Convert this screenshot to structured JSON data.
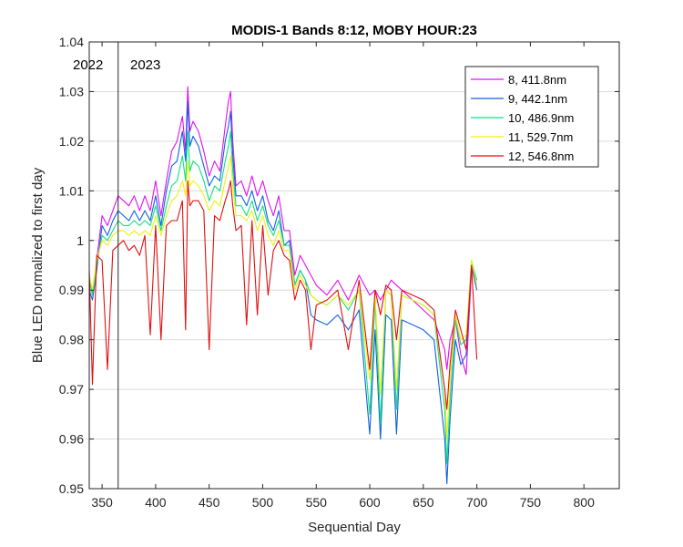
{
  "chart_data": {
    "type": "line",
    "title": "MODIS-1 Bands 8:12, MOBY HOUR:23",
    "xlabel": "Sequential Day",
    "ylabel": "Blue LED normalized to first day",
    "xlim": [
      338,
      833
    ],
    "ylim": [
      0.95,
      1.04
    ],
    "xticks": [
      350,
      400,
      450,
      500,
      550,
      600,
      650,
      700,
      750,
      800
    ],
    "yticks": [
      0.95,
      0.96,
      0.97,
      0.98,
      0.99,
      1,
      1.01,
      1.02,
      1.03,
      1.04
    ],
    "ytick_labels": [
      "0.95",
      "0.96",
      "0.97",
      "0.98",
      "0.99",
      "1",
      "1.01",
      "1.02",
      "1.03",
      "1.04"
    ],
    "grid": "horizontal",
    "legend_position": "top-right",
    "annotations": [
      {
        "type": "vline",
        "x": 365
      },
      {
        "text": "2022",
        "x": 349,
        "y": 1.0355
      },
      {
        "text": "2023",
        "x": 382,
        "y": 1.0355
      }
    ],
    "series": [
      {
        "name": "8, 411.8nm",
        "color": "#e010f0",
        "x": [
          338,
          341,
          345,
          350,
          355,
          360,
          365,
          370,
          375,
          380,
          385,
          390,
          395,
          400,
          405,
          410,
          415,
          420,
          425,
          428,
          430,
          432,
          435,
          440,
          445,
          450,
          455,
          460,
          465,
          468,
          470,
          472,
          475,
          480,
          485,
          490,
          495,
          500,
          505,
          510,
          515,
          520,
          525,
          530,
          535,
          540,
          545,
          550,
          560,
          570,
          580,
          590,
          600,
          605,
          610,
          615,
          620,
          625,
          630,
          640,
          650,
          660,
          670,
          672,
          675,
          680,
          685,
          690,
          695,
          700
        ],
        "y": [
          0.993,
          0.989,
          0.996,
          1.005,
          1.003,
          1.006,
          1.009,
          1.008,
          1.007,
          1.009,
          1.006,
          1.009,
          1.006,
          1.012,
          1.005,
          1.012,
          1.018,
          1.02,
          1.025,
          1.018,
          1.031,
          1.022,
          1.024,
          1.022,
          1.018,
          1.013,
          1.016,
          1.014,
          1.023,
          1.028,
          1.03,
          1.02,
          1.011,
          1.012,
          1.009,
          1.013,
          1.009,
          1.012,
          1.008,
          1.005,
          1.009,
          1.002,
          1.002,
          0.993,
          0.997,
          0.995,
          0.993,
          0.991,
          0.989,
          0.992,
          0.988,
          0.993,
          0.989,
          0.99,
          0.988,
          0.99,
          0.992,
          0.991,
          0.99,
          0.988,
          0.986,
          0.984,
          0.978,
          0.974,
          0.98,
          0.984,
          0.977,
          0.973,
          0.994,
          0.992
        ]
      },
      {
        "name": "9, 442.1nm",
        "color": "#1060e0",
        "x": [
          338,
          341,
          345,
          350,
          355,
          360,
          365,
          370,
          375,
          380,
          385,
          390,
          395,
          400,
          405,
          410,
          415,
          420,
          425,
          428,
          430,
          432,
          435,
          440,
          445,
          450,
          455,
          460,
          465,
          468,
          470,
          472,
          475,
          480,
          485,
          490,
          495,
          500,
          505,
          510,
          515,
          520,
          525,
          530,
          535,
          540,
          545,
          550,
          560,
          570,
          580,
          590,
          600,
          605,
          610,
          615,
          620,
          625,
          630,
          640,
          650,
          660,
          670,
          672,
          675,
          680,
          685,
          690,
          695,
          700
        ],
        "y": [
          0.99,
          0.988,
          0.994,
          1.003,
          1.001,
          1.004,
          1.006,
          1.005,
          1.004,
          1.006,
          1.004,
          1.006,
          1.004,
          1.009,
          1.003,
          1.01,
          1.015,
          1.016,
          1.022,
          1.016,
          1.028,
          1.019,
          1.021,
          1.019,
          1.015,
          1.011,
          1.013,
          1.012,
          1.02,
          1.023,
          1.026,
          1.017,
          1.009,
          1.009,
          1.007,
          1.01,
          1.006,
          1.009,
          1.004,
          1.002,
          1.006,
          0.999,
          1,
          0.991,
          0.994,
          0.992,
          0.985,
          0.984,
          0.983,
          0.985,
          0.982,
          0.986,
          0.961,
          0.982,
          0.96,
          0.985,
          0.984,
          0.961,
          0.984,
          0.983,
          0.982,
          0.98,
          0.96,
          0.951,
          0.964,
          0.98,
          0.975,
          0.977,
          0.995,
          0.99
        ]
      },
      {
        "name": "10, 486.9nm",
        "color": "#10e080",
        "x": [
          338,
          341,
          345,
          350,
          355,
          360,
          365,
          370,
          375,
          380,
          385,
          390,
          395,
          400,
          405,
          410,
          415,
          420,
          425,
          428,
          430,
          432,
          435,
          440,
          445,
          450,
          455,
          460,
          465,
          468,
          470,
          472,
          475,
          480,
          485,
          490,
          495,
          500,
          505,
          510,
          515,
          520,
          525,
          530,
          535,
          540,
          545,
          550,
          560,
          570,
          580,
          590,
          600,
          605,
          610,
          615,
          620,
          625,
          630,
          640,
          650,
          660,
          670,
          672,
          675,
          680,
          685,
          690,
          695,
          700
        ],
        "y": [
          0.992,
          0.989,
          0.995,
          1.001,
          1,
          1.002,
          1.004,
          1.003,
          1.003,
          1.004,
          1.003,
          1.004,
          1.003,
          1.007,
          1.002,
          1.007,
          1.011,
          1.012,
          1.017,
          1.012,
          1.022,
          1.014,
          1.016,
          1.015,
          1.012,
          1.008,
          1.011,
          1.01,
          1.016,
          1.019,
          1.022,
          1.014,
          1.007,
          1.007,
          1.005,
          1.008,
          1.004,
          1.007,
          1.003,
          1.001,
          1.004,
          0.999,
          0.999,
          0.991,
          0.994,
          0.992,
          0.989,
          0.988,
          0.987,
          0.989,
          0.986,
          0.99,
          0.965,
          0.988,
          0.963,
          0.99,
          0.989,
          0.966,
          0.989,
          0.988,
          0.987,
          0.985,
          0.966,
          0.955,
          0.968,
          0.984,
          0.979,
          0.98,
          0.996,
          0.992
        ]
      },
      {
        "name": "11, 529.7nm",
        "color": "#f0f010",
        "x": [
          338,
          341,
          345,
          350,
          355,
          360,
          365,
          370,
          375,
          380,
          385,
          390,
          395,
          400,
          405,
          410,
          415,
          420,
          425,
          428,
          430,
          432,
          435,
          440,
          445,
          450,
          455,
          460,
          465,
          468,
          470,
          472,
          475,
          480,
          485,
          490,
          495,
          500,
          505,
          510,
          515,
          520,
          525,
          530,
          535,
          540,
          545,
          550,
          560,
          570,
          580,
          590,
          600,
          605,
          610,
          615,
          620,
          625,
          630,
          640,
          650,
          660,
          670,
          672,
          675,
          680,
          685,
          690,
          695,
          700
        ],
        "y": [
          0.993,
          0.99,
          0.996,
          1,
          0.999,
          1.001,
          1.002,
          1.002,
          1.001,
          1.002,
          1.001,
          1.002,
          1.001,
          1.005,
          1.001,
          1.005,
          1.008,
          1.009,
          1.012,
          1.009,
          1.016,
          1.011,
          1.012,
          1.011,
          1.009,
          1.006,
          1.008,
          1.007,
          1.012,
          1.015,
          1.017,
          1.011,
          1.005,
          1.005,
          1.004,
          1.006,
          1.002,
          1.005,
          1.001,
          0.999,
          1.002,
          0.998,
          0.998,
          0.99,
          0.993,
          0.991,
          0.989,
          0.988,
          0.987,
          0.989,
          0.987,
          0.99,
          0.972,
          0.989,
          0.969,
          0.99,
          0.989,
          0.97,
          0.989,
          0.988,
          0.987,
          0.985,
          0.97,
          0.96,
          0.972,
          0.985,
          0.98,
          0.981,
          0.996,
          0.991
        ]
      },
      {
        "name": "12, 546.8nm",
        "color": "#e01010",
        "x": [
          338,
          341,
          345,
          350,
          355,
          360,
          365,
          370,
          375,
          380,
          385,
          390,
          395,
          400,
          405,
          410,
          415,
          420,
          425,
          428,
          430,
          432,
          435,
          440,
          445,
          450,
          455,
          460,
          465,
          468,
          470,
          472,
          475,
          480,
          485,
          490,
          495,
          500,
          505,
          510,
          515,
          520,
          525,
          530,
          535,
          540,
          545,
          550,
          560,
          570,
          580,
          590,
          600,
          605,
          610,
          615,
          620,
          625,
          630,
          640,
          650,
          660,
          670,
          672,
          675,
          680,
          685,
          690,
          695,
          700
        ],
        "y": [
          0.994,
          0.971,
          0.997,
          0.996,
          0.974,
          0.998,
          0.999,
          1,
          0.998,
          0.999,
          0.997,
          1.001,
          0.981,
          1.003,
          0.98,
          1.003,
          1.004,
          1.004,
          1.008,
          0.982,
          1.012,
          1.007,
          1.008,
          1.008,
          1.006,
          0.978,
          1.005,
          1.004,
          1.008,
          1.01,
          1.012,
          1.007,
          1.002,
          1.003,
          0.983,
          1.004,
          0.985,
          1.003,
          0.989,
          0.998,
          1,
          0.997,
          0.996,
          0.988,
          0.992,
          0.99,
          0.978,
          0.987,
          0.988,
          0.99,
          0.978,
          0.992,
          0.974,
          0.99,
          0.985,
          0.991,
          0.99,
          0.98,
          0.99,
          0.989,
          0.988,
          0.986,
          0.97,
          0.966,
          0.975,
          0.986,
          0.982,
          0.978,
          0.995,
          0.976
        ]
      }
    ]
  }
}
